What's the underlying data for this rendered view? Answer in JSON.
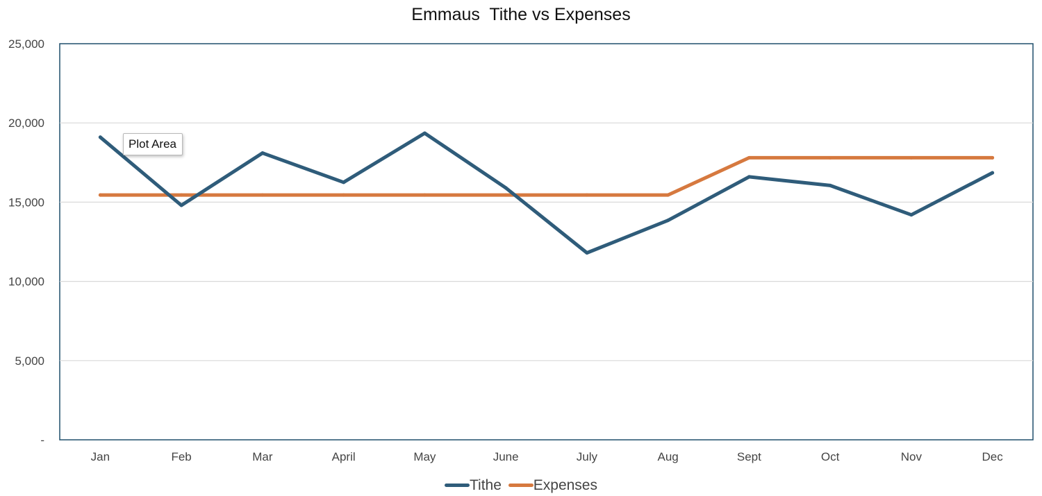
{
  "chart_data": {
    "type": "line",
    "title": "Emmaus  Tithe vs Expenses",
    "categories": [
      "Jan",
      "Feb",
      "Mar",
      "April",
      "May",
      "June",
      "July",
      "Aug",
      "Sept",
      "Oct",
      "Nov",
      "Dec"
    ],
    "series": [
      {
        "name": "Tithe",
        "color": "#2f5c7a",
        "values": [
          19100,
          14800,
          18100,
          16250,
          19350,
          15900,
          11800,
          13850,
          16600,
          16050,
          14200,
          16850
        ]
      },
      {
        "name": "Expenses",
        "color": "#d6793f",
        "values": [
          15450,
          15450,
          15450,
          15450,
          15450,
          15450,
          15450,
          15450,
          17800,
          17800,
          17800,
          17800
        ]
      }
    ],
    "ylim": [
      0,
      25000
    ],
    "yticks": [
      {
        "value": 0,
        "label": "-"
      },
      {
        "value": 5000,
        "label": "5,000"
      },
      {
        "value": 10000,
        "label": "10,000"
      },
      {
        "value": 15000,
        "label": "15,000"
      },
      {
        "value": 20000,
        "label": "20,000"
      },
      {
        "value": 25000,
        "label": "25,000"
      }
    ],
    "grid": true,
    "legend": "bottom",
    "xlabel": "",
    "ylabel": ""
  },
  "tooltip": {
    "text": "Plot Area"
  }
}
